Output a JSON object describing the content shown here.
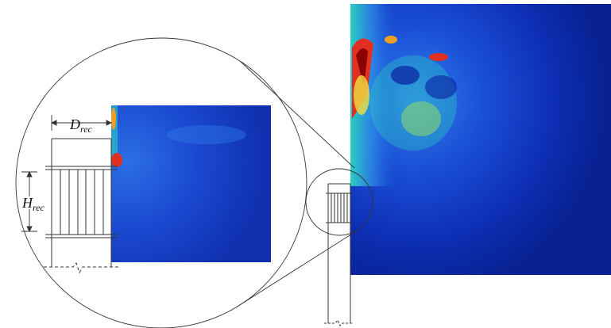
{
  "labels": {
    "d_rec": {
      "symbol": "D",
      "subscript": "rec"
    },
    "h_rec": {
      "symbol": "H",
      "subscript": "rec"
    }
  }
}
